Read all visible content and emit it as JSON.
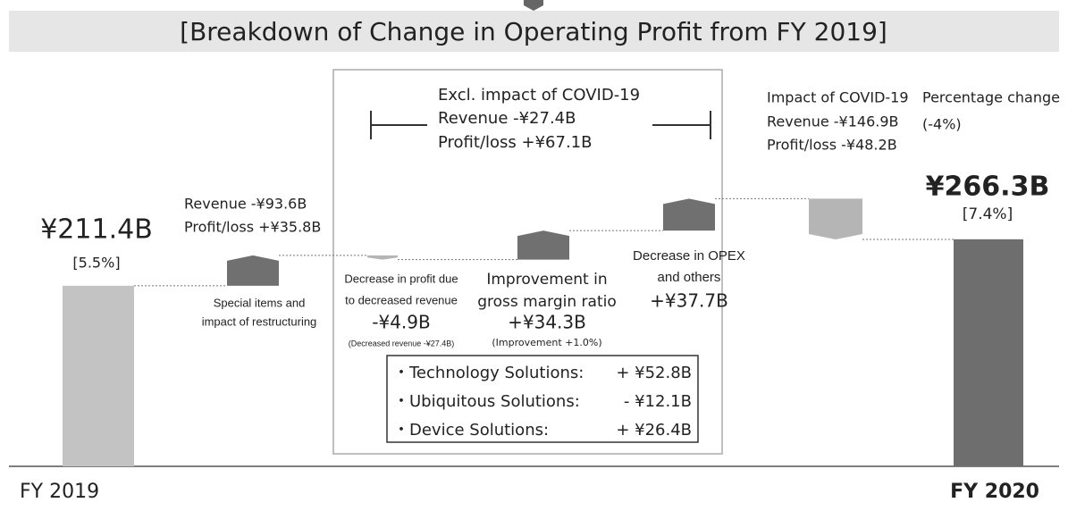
{
  "chart_data": {
    "type": "waterfall",
    "title": "[Breakdown of Change in Operating Profit from FY 2019]",
    "categories": [
      "FY 2019",
      null,
      null,
      null,
      null,
      null,
      "FY 2020"
    ],
    "measure": [
      "absolute",
      "relative",
      "relative",
      "relative",
      "relative",
      "relative",
      "absolute"
    ],
    "values": [
      211.4,
      35.8,
      -4.9,
      34.3,
      37.7,
      -48.2,
      266.3
    ],
    "value_labels": [
      "¥211.4B",
      null,
      "-¥4.9B",
      "+¥34.3B",
      "+¥37.7B",
      null,
      "¥266.3B"
    ],
    "colors": [
      "#c3c3c3",
      "#707070",
      "#b5b5b5",
      "#707070",
      "#707070",
      "#b5b5b5",
      "#6e6e6e"
    ],
    "ylim": [
      0,
      320
    ],
    "annotations": [
      "Excl. impact of COVID-19",
      "Revenue   -¥27.4B",
      "Profit/loss +¥67.1B",
      "Impact of COVID-19",
      "Revenue  -¥146.9B",
      "Profit/loss  -¥48.2B",
      "Percentage change",
      "(-4%)",
      "Revenue   -¥93.6B",
      "Profit/loss +¥35.8B",
      "[5.5%]",
      "[7.4%]",
      "Special items and",
      "impact of restructuring",
      "Decrease in profit due",
      "to decreased revenue",
      "(Decreased revenue -¥27.4B)",
      "Improvement in",
      "gross margin ratio",
      "(Improvement +1.0%)",
      "Decrease in OPEX",
      "and others"
    ],
    "breakdown": [
      {
        "label": "・Technology Solutions:",
        "value": "+ ¥52.8B"
      },
      {
        "label": "・Ubiquitous Solutions:",
        "value": "- ¥12.1B"
      },
      {
        "label": "・Device Solutions:",
        "value": "+ ¥26.4B"
      }
    ]
  }
}
